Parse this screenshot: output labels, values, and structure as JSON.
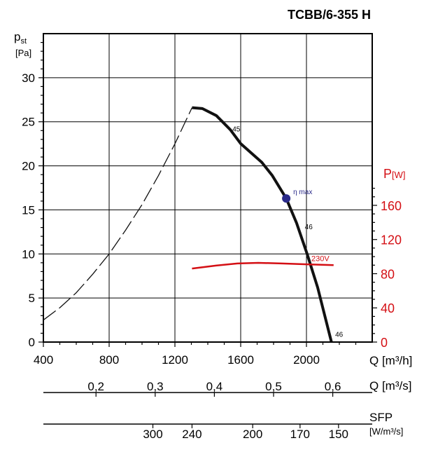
{
  "chart_data": {
    "type": "line",
    "title": "TCBB/6-355 H",
    "xlabel": "Q [m³/h]",
    "ylabel_main": "p",
    "ylabel_sub": "st",
    "ylabel_unit": "[Pa]",
    "y2label_main": "P",
    "y2label_unit": "[W]",
    "xlim": [
      400,
      2400
    ],
    "ylim": [
      0,
      35
    ],
    "y2lim": [
      0,
      180
    ],
    "grid": true,
    "x_ticks": [
      400,
      800,
      1200,
      1600,
      2000
    ],
    "y_ticks": [
      0,
      5,
      10,
      15,
      20,
      25,
      30
    ],
    "y2_ticks": [
      0,
      40,
      80,
      120,
      160
    ],
    "colors": {
      "pressure": "#111111",
      "power": "#d40f14",
      "eta": "#2a2a8a",
      "axis2": "#d40f14"
    },
    "series": [
      {
        "name": "",
        "kind": "fan-curve",
        "x": [
          1304,
          1367,
          1452,
          1537,
          1601,
          1728,
          1792,
          1877,
          1940,
          2004,
          2068,
          2152
        ],
        "y": [
          26.6,
          26.5,
          25.7,
          24.1,
          22.5,
          20.4,
          18.9,
          16.3,
          13.5,
          10.0,
          6.2,
          0
        ]
      },
      {
        "name": "",
        "kind": "system-curve-dashed",
        "x": [
          400,
          500,
          600,
          700,
          800,
          900,
          1000,
          1100,
          1200,
          1304
        ],
        "y": [
          2.5,
          3.9,
          5.6,
          7.7,
          10.0,
          12.7,
          15.6,
          18.9,
          22.5,
          26.6
        ]
      },
      {
        "name": "230V",
        "kind": "power",
        "axis": "right",
        "x": [
          1304,
          1450,
          1580,
          1707,
          1850,
          2004,
          2165
        ],
        "y": [
          86,
          89.5,
          92,
          92.7,
          92,
          91,
          90
        ]
      }
    ],
    "annotations": [
      {
        "text": "45",
        "x": 1550,
        "y": 23.9
      },
      {
        "text": "46",
        "x": 1990,
        "y": 12.8
      },
      {
        "text": "46",
        "x": 2175,
        "y": 0.6
      },
      {
        "text": "230V",
        "x": 2030,
        "y": 9.2
      }
    ],
    "eta_max": {
      "label": "η max",
      "x": 1877,
      "y": 16.3
    },
    "secondary_axes": [
      {
        "label": "Q [m³/s]",
        "ticks": [
          {
            "label": "0,2",
            "q": 720
          },
          {
            "label": "0,3",
            "q": 1080
          },
          {
            "label": "0,4",
            "q": 1440
          },
          {
            "label": "0,5",
            "q": 1800
          },
          {
            "label": "0,6",
            "q": 2160
          }
        ]
      },
      {
        "label": "SFP",
        "unit": "[W/m³/s]",
        "ticks": [
          {
            "label": "300",
            "q": 1066
          },
          {
            "label": "240",
            "q": 1304
          },
          {
            "label": "200",
            "q": 1673
          },
          {
            "label": "170",
            "q": 1961
          },
          {
            "label": "150",
            "q": 2195
          }
        ]
      }
    ]
  }
}
